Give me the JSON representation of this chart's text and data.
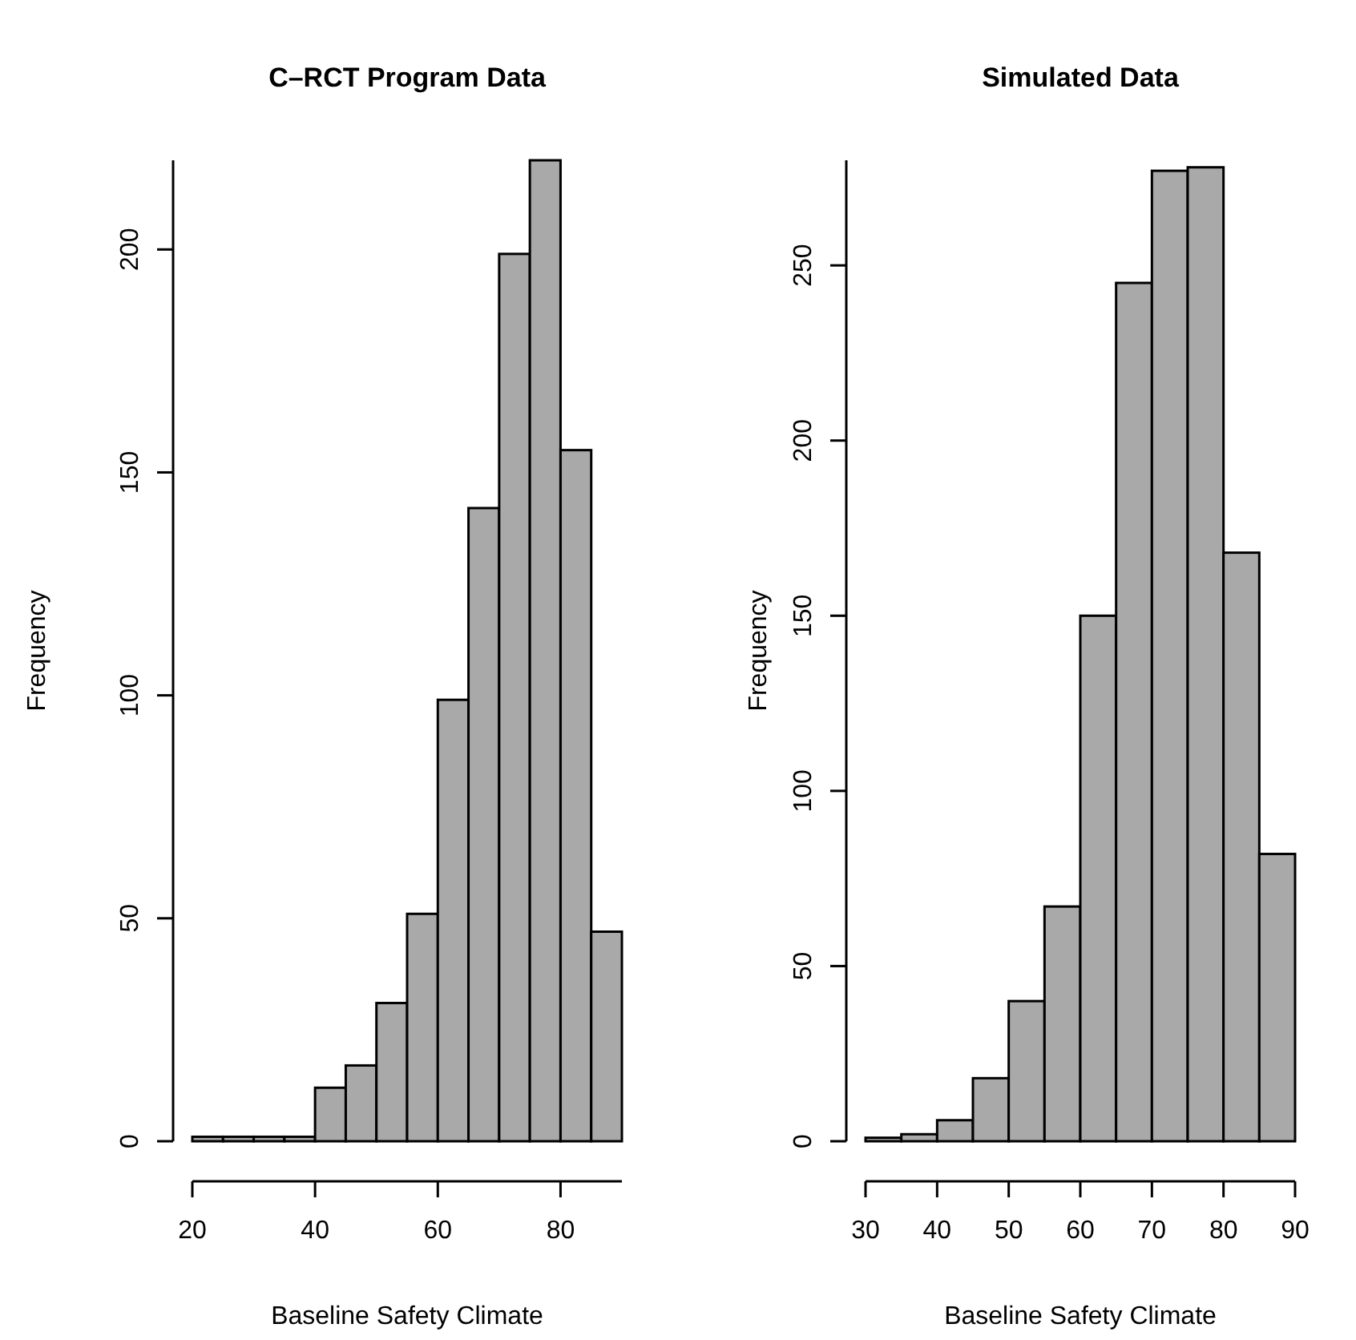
{
  "chart_data": [
    {
      "type": "histogram",
      "title": "C–RCT Program Data",
      "xlabel": "Baseline Safety Climate",
      "ylabel": "Frequency",
      "bins": [
        20,
        25,
        30,
        35,
        40,
        45,
        50,
        55,
        60,
        65,
        70,
        75,
        80,
        85,
        90
      ],
      "values": [
        1,
        1,
        1,
        1,
        12,
        17,
        31,
        51,
        99,
        142,
        199,
        220,
        155,
        47
      ],
      "color": "#a9a9a9",
      "xlim": [
        20,
        90
      ],
      "xticks": [
        20,
        40,
        60,
        80
      ],
      "ylim": [
        0,
        220
      ],
      "yticks": [
        0,
        50,
        100,
        150,
        200
      ],
      "grid": false
    },
    {
      "type": "histogram",
      "title": "Simulated Data",
      "xlabel": "Baseline Safety Climate",
      "ylabel": "Frequency",
      "bins": [
        30,
        35,
        40,
        45,
        50,
        55,
        60,
        65,
        70,
        75,
        80,
        85,
        90
      ],
      "values": [
        1,
        2,
        6,
        18,
        40,
        67,
        150,
        245,
        277,
        278,
        168,
        82
      ],
      "color": "#a9a9a9",
      "xlim": [
        30,
        90
      ],
      "xticks": [
        30,
        40,
        50,
        60,
        70,
        80,
        90
      ],
      "ylim": [
        0,
        280
      ],
      "yticks": [
        0,
        50,
        100,
        150,
        200,
        250
      ],
      "grid": false
    }
  ]
}
